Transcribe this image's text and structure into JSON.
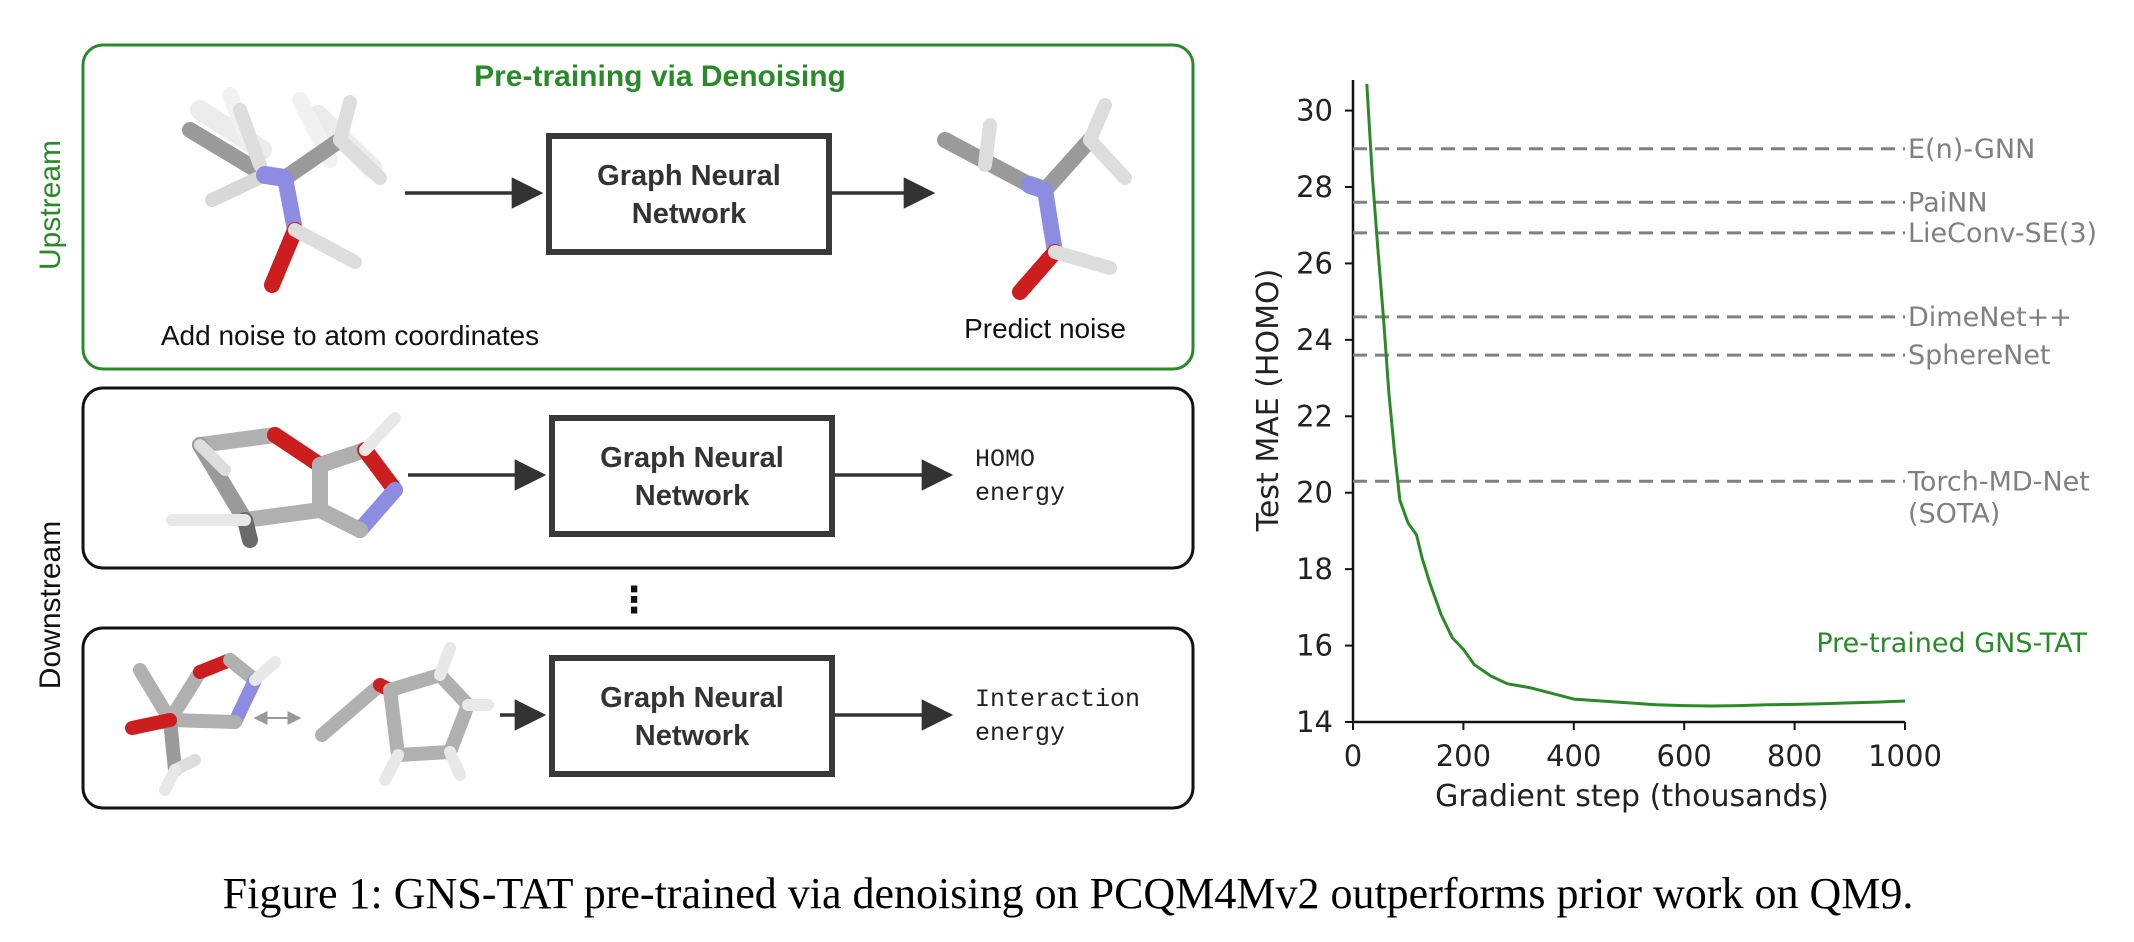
{
  "upstream": {
    "section_label": "Upstream",
    "title": "Pre-training via Denoising",
    "gnn_label_line1": "Graph Neural",
    "gnn_label_line2": "Network",
    "input_caption": "Add noise to atom coordinates",
    "output_caption": "Predict noise"
  },
  "downstream": {
    "section_label": "Downstream",
    "rows": [
      {
        "gnn_label_line1": "Graph Neural",
        "gnn_label_line2": "Network",
        "output_line1": "HOMO",
        "output_line2": "energy"
      },
      {
        "gnn_label_line1": "Graph Neural",
        "gnn_label_line2": "Network",
        "output_line1": "Interaction",
        "output_line2": "energy"
      }
    ],
    "ellipsis": "⋮"
  },
  "chart_data": {
    "type": "line",
    "title": "",
    "xlabel": "Gradient step (thousands)",
    "ylabel": "Test MAE (HOMO)",
    "xlim": [
      0,
      1000
    ],
    "ylim": [
      14,
      30.8
    ],
    "xticks": [
      0,
      200,
      400,
      600,
      800,
      1000
    ],
    "yticks": [
      14,
      16,
      18,
      20,
      22,
      24,
      26,
      28,
      30
    ],
    "series": [
      {
        "name": "Pre-trained GNS-TAT",
        "color": "#2a8a2a",
        "x": [
          25,
          35,
          45,
          55,
          65,
          75,
          85,
          100,
          115,
          125,
          140,
          160,
          180,
          200,
          220,
          250,
          280,
          320,
          360,
          400,
          450,
          500,
          550,
          600,
          650,
          700,
          750,
          800,
          850,
          900,
          950,
          1000
        ],
        "y": [
          30.7,
          28.3,
          26.4,
          24.6,
          22.6,
          21.1,
          19.8,
          19.2,
          18.9,
          18.3,
          17.6,
          16.8,
          16.2,
          15.9,
          15.5,
          15.2,
          15.0,
          14.9,
          14.75,
          14.6,
          14.55,
          14.5,
          14.45,
          14.43,
          14.42,
          14.43,
          14.45,
          14.46,
          14.48,
          14.5,
          14.52,
          14.55
        ]
      }
    ],
    "baselines": [
      {
        "name": "E(n)-GNN",
        "value": 29.0
      },
      {
        "name": "PaiNN",
        "value": 27.6
      },
      {
        "name": "LieConv-SE(3)",
        "value": 26.8
      },
      {
        "name": "DimeNet++",
        "value": 24.6
      },
      {
        "name": "SphereNet",
        "value": 23.6
      },
      {
        "name": "Torch-MD-Net",
        "name_line2": "(SOTA)",
        "value": 20.3
      }
    ],
    "baseline_color": "#808080"
  },
  "colors": {
    "upstream_green": "#2a8a2a",
    "frame_dark": "#111111",
    "gnn_border": "#3a3a3a",
    "arrow": "#333333",
    "atom_carbon": "#b0b0b0",
    "atom_nitrogen": "#8c8ce0",
    "atom_oxygen": "#cc1e1e",
    "atom_hydrogen": "#f0f0f0"
  },
  "caption": "Figure 1: GNS-TAT pre-trained via denoising on PCQM4Mv2 outperforms prior work on QM9."
}
